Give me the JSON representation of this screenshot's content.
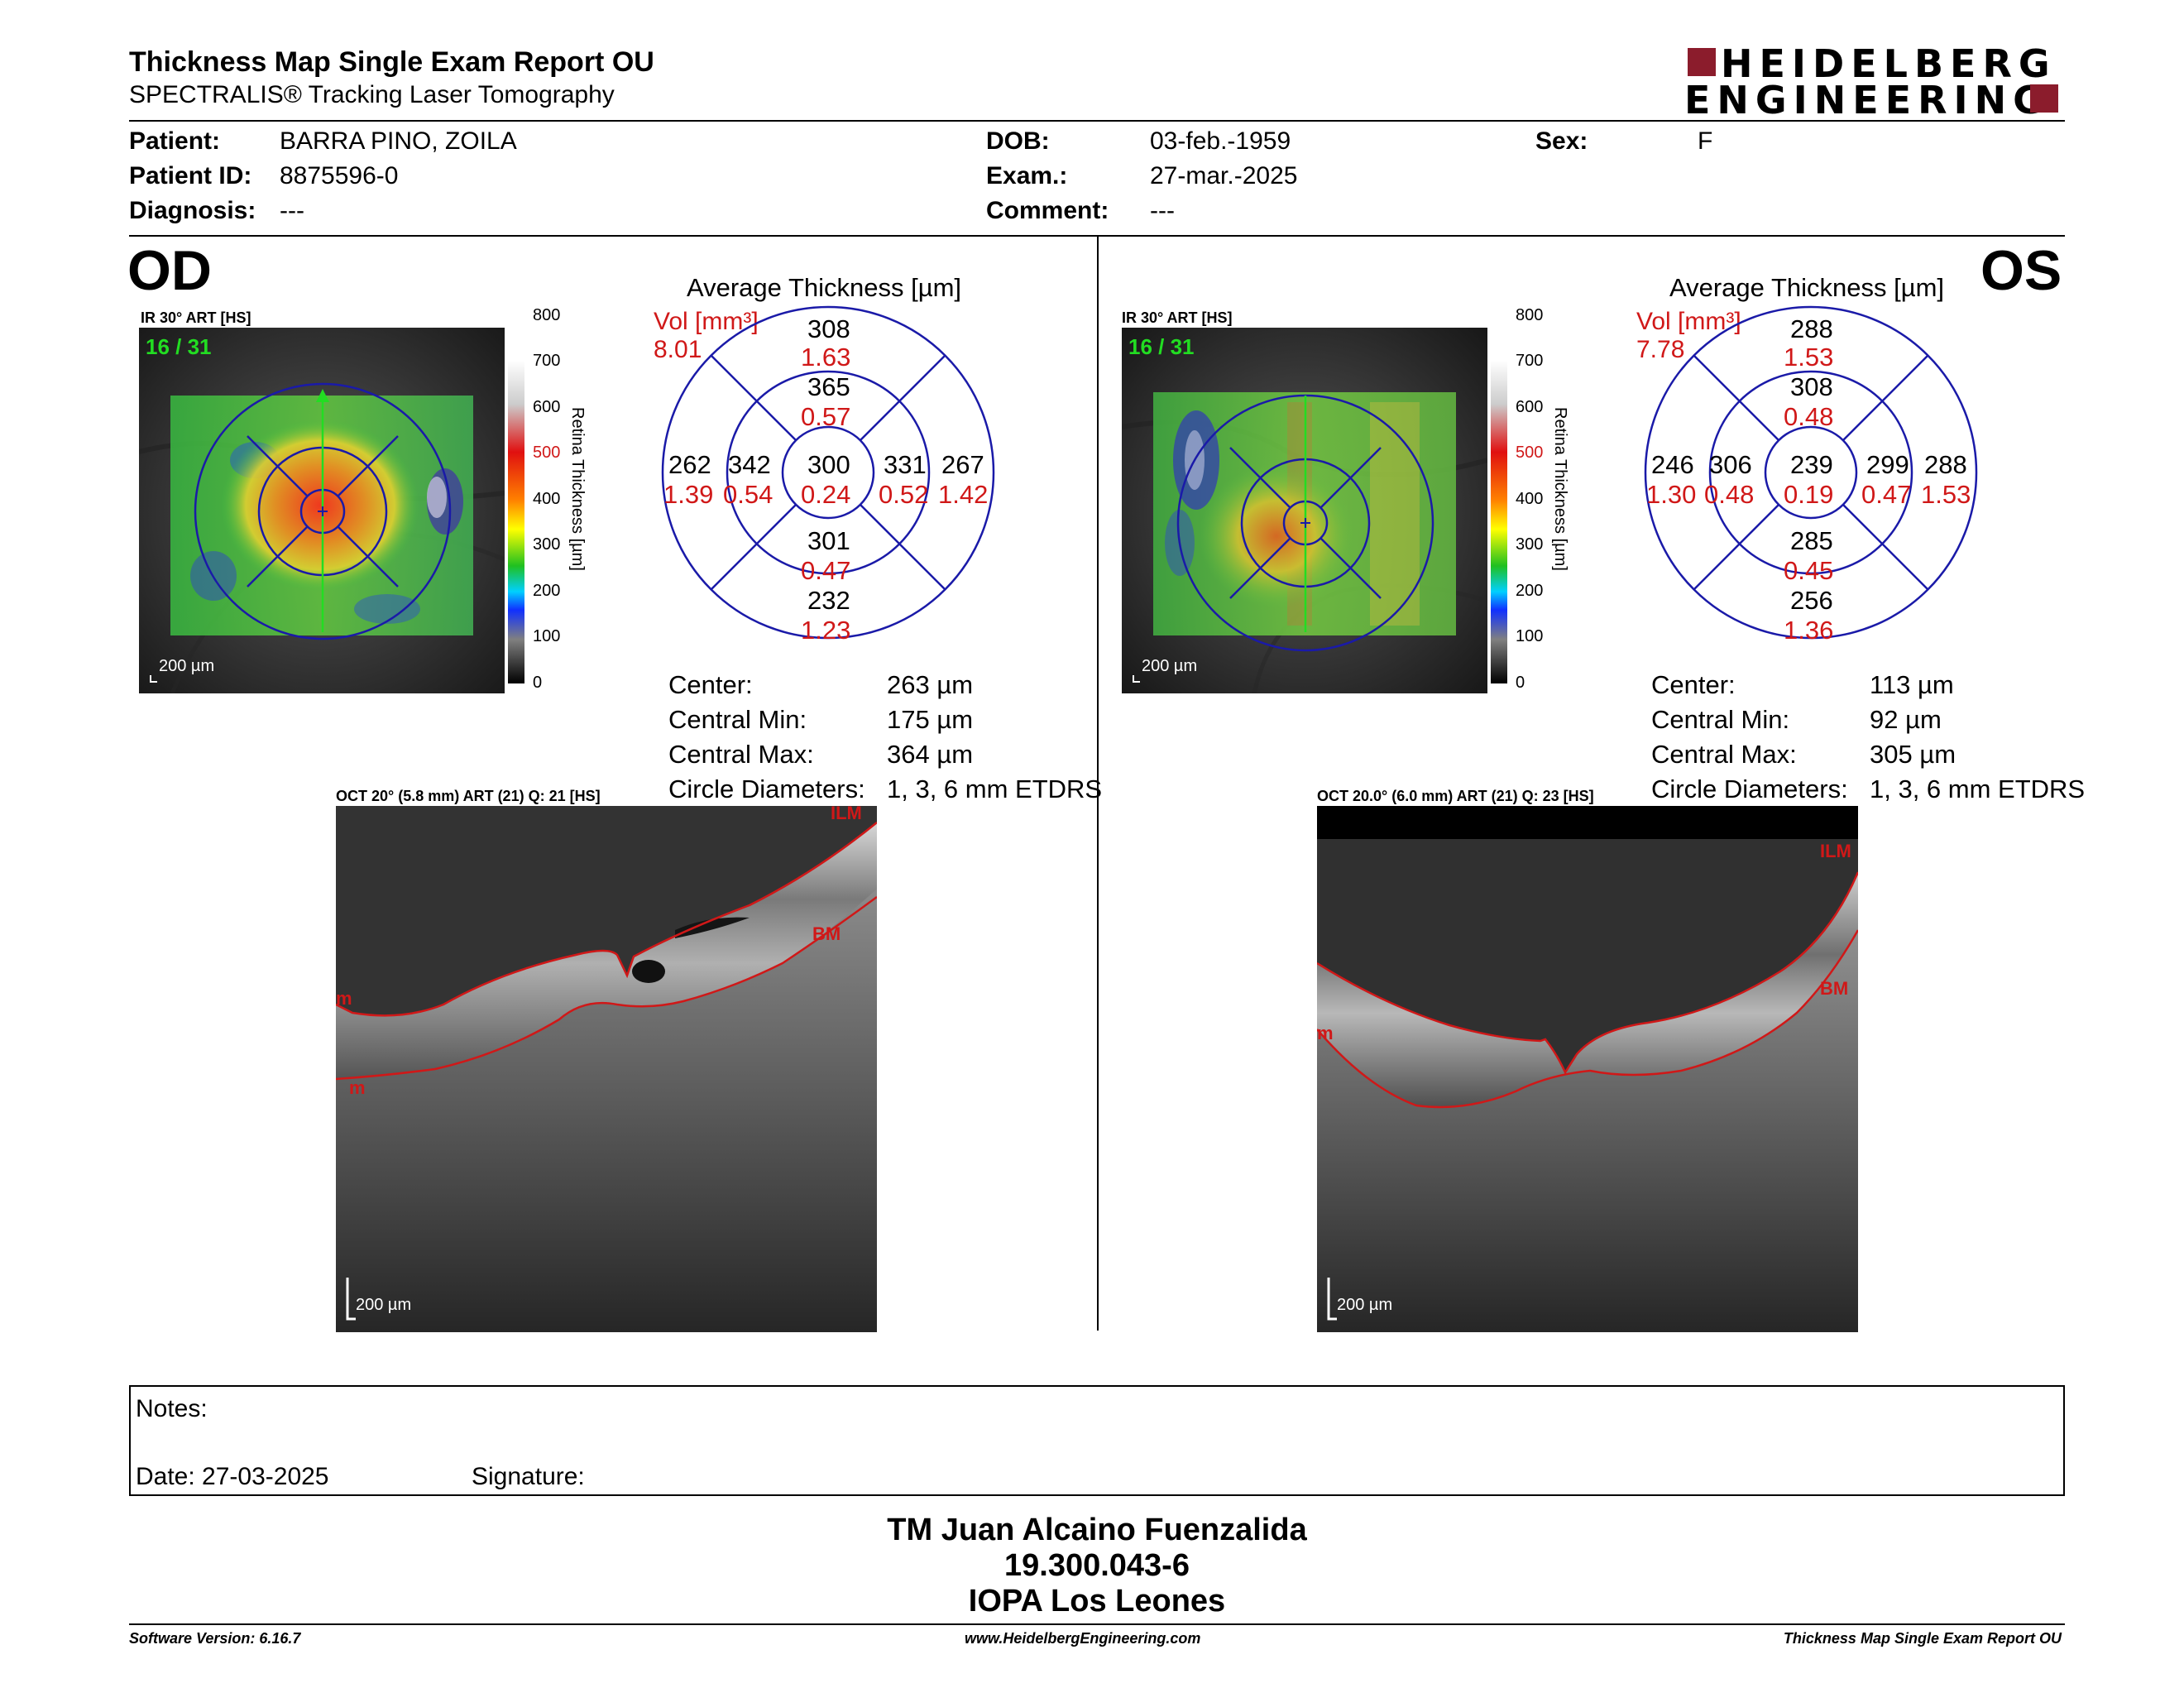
{
  "header": {
    "title": "Thickness Map Single Exam Report OU",
    "subtitle": "SPECTRALIS® Tracking Laser Tomography",
    "logo_line1": "HEIDELBERG",
    "logo_line2": "ENGINEERING"
  },
  "patient": {
    "patient_label": "Patient:",
    "patient_value": "BARRA PINO, ZOILA",
    "id_label": "Patient ID:",
    "id_value": "8875596-0",
    "diagnosis_label": "Diagnosis:",
    "diagnosis_value": "---",
    "dob_label": "DOB:",
    "dob_value": "03-feb.-1959",
    "exam_label": "Exam.:",
    "exam_value": "27-mar.-2025",
    "comment_label": "Comment:",
    "comment_value": "---",
    "sex_label": "Sex:",
    "sex_value": "F"
  },
  "colors": {
    "accent": "#8b1c2c",
    "etdrs_grid": "#1a1aa8",
    "volume_text": "#d01818",
    "fixation": "#22dd22"
  },
  "od": {
    "eye_label": "OD",
    "ir_caption": "IR 30° ART [HS]",
    "frame": "16 / 31",
    "scale_bar": "200 µm",
    "oct_caption": "OCT 20° (5.8 mm) ART (21) Q: 21 [HS]",
    "oct_scale": "200 µm",
    "seg_labels": {
      "top": "ILM",
      "right": "BM",
      "left_upper": "m",
      "left_lower": "m"
    },
    "avg_title": "Average Thickness [µm]",
    "vol_label": "Vol [mm³]",
    "vol_total": "8.01",
    "etdrs": {
      "center": {
        "thickness": "300",
        "volume": "0.24"
      },
      "inner_superior": {
        "thickness": "365",
        "volume": "0.57"
      },
      "inner_temporal": {
        "thickness": "342",
        "volume": "0.54"
      },
      "inner_nasal": {
        "thickness": "331",
        "volume": "0.52"
      },
      "inner_inferior": {
        "thickness": "301",
        "volume": "0.47"
      },
      "outer_superior": {
        "thickness": "308",
        "volume": "1.63"
      },
      "outer_temporal": {
        "thickness": "262",
        "volume": "1.39"
      },
      "outer_nasal": {
        "thickness": "267",
        "volume": "1.42"
      },
      "outer_inferior": {
        "thickness": "232",
        "volume": "1.23"
      }
    },
    "stats": {
      "center_label": "Center:",
      "center_value": "263 µm",
      "min_label": "Central Min:",
      "min_value": "175 µm",
      "max_label": "Central Max:",
      "max_value": "364 µm",
      "diam_label": "Circle Diameters:",
      "diam_value": "1, 3, 6 mm ETDRS"
    }
  },
  "os": {
    "eye_label": "OS",
    "ir_caption": "IR 30° ART [HS]",
    "frame": "16 / 31",
    "scale_bar": "200 µm",
    "oct_caption": "OCT 20.0° (6.0 mm) ART (21) Q: 23 [HS]",
    "oct_scale": "200 µm",
    "seg_labels": {
      "top": "ILM",
      "right": "BM",
      "left_upper": "m"
    },
    "avg_title": "Average Thickness [µm]",
    "vol_label": "Vol [mm³]",
    "vol_total": "7.78",
    "etdrs": {
      "center": {
        "thickness": "239",
        "volume": "0.19"
      },
      "inner_superior": {
        "thickness": "308",
        "volume": "0.48"
      },
      "inner_temporal": {
        "thickness": "299",
        "volume": "0.47"
      },
      "inner_nasal": {
        "thickness": "306",
        "volume": "0.48"
      },
      "inner_inferior": {
        "thickness": "285",
        "volume": "0.45"
      },
      "outer_superior": {
        "thickness": "288",
        "volume": "1.53"
      },
      "outer_temporal": {
        "thickness": "288",
        "volume": "1.53"
      },
      "outer_nasal": {
        "thickness": "246",
        "volume": "1.30"
      },
      "outer_inferior": {
        "thickness": "256",
        "volume": "1.36"
      }
    },
    "stats": {
      "center_label": "Center:",
      "center_value": "113 µm",
      "min_label": "Central Min:",
      "min_value": "92 µm",
      "max_label": "Central Max:",
      "max_value": "305 µm",
      "diam_label": "Circle Diameters:",
      "diam_value": "1, 3, 6 mm ETDRS"
    }
  },
  "color_scale": {
    "title": "Retina Thickness [µm]",
    "ticks": [
      "800",
      "700",
      "600",
      "500",
      "400",
      "300",
      "200",
      "100",
      "0"
    ]
  },
  "notes": {
    "notes_label": "Notes:",
    "date_label": "Date: 27-03-2025",
    "signature_label": "Signature:"
  },
  "signature_block": {
    "name": "TM Juan Alcaino Fuenzalida",
    "id": "19.300.043-6",
    "institution": "IOPA Los Leones"
  },
  "footer": {
    "software": "Software Version: 6.16.7",
    "website": "www.HeidelbergEngineering.com",
    "report": "Thickness Map Single Exam Report OU"
  }
}
